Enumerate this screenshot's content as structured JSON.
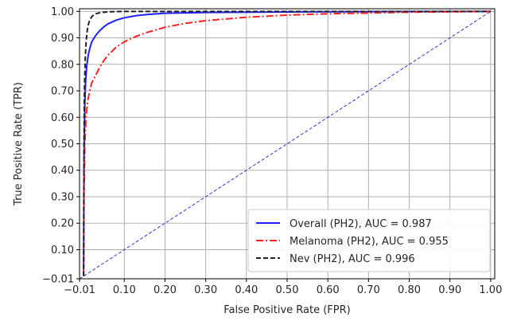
{
  "chart_data": {
    "type": "line",
    "xlabel": "False Positive Rate (FPR)",
    "ylabel": "True Positive Rate (TPR)",
    "xlim": [
      -0.01,
      1.01
    ],
    "ylim": [
      -0.01,
      1.01
    ],
    "x_ticks": [
      -0.01,
      0.1,
      0.2,
      0.3,
      0.4,
      0.5,
      0.6,
      0.7,
      0.8,
      0.9,
      1.0
    ],
    "x_tick_labels": [
      "−0.01",
      "0.10",
      "0.20",
      "0.30",
      "0.40",
      "0.50",
      "0.60",
      "0.70",
      "0.80",
      "0.90",
      "1.00"
    ],
    "y_ticks": [
      -0.01,
      0.1,
      0.2,
      0.3,
      0.4,
      0.5,
      0.6,
      0.7,
      0.8,
      0.9,
      1.0
    ],
    "y_tick_labels": [
      "−0.01",
      "0.10",
      "0.20",
      "0.30",
      "0.40",
      "0.50",
      "0.60",
      "0.70",
      "0.80",
      "0.90",
      "1.00"
    ],
    "grid": true,
    "legend_position": "bottom-right",
    "series": [
      {
        "name": "Overall (PH2), AUC = 0.987",
        "color": "#1f1fff",
        "style": "solid",
        "x": [
          0.0,
          0.001,
          0.003,
          0.005,
          0.008,
          0.012,
          0.016,
          0.02,
          0.03,
          0.04,
          0.05,
          0.06,
          0.08,
          0.1,
          0.13,
          0.16,
          0.2,
          0.3,
          0.5,
          0.7,
          1.0
        ],
        "y": [
          0.0,
          0.45,
          0.65,
          0.74,
          0.8,
          0.84,
          0.865,
          0.885,
          0.91,
          0.928,
          0.942,
          0.953,
          0.967,
          0.976,
          0.984,
          0.989,
          0.993,
          0.996,
          0.998,
          0.999,
          1.0
        ]
      },
      {
        "name": "Melanoma (PH2), AUC = 0.955",
        "color": "#ff2020",
        "style": "dashdot",
        "x": [
          0.0,
          0.001,
          0.003,
          0.006,
          0.01,
          0.015,
          0.02,
          0.03,
          0.04,
          0.05,
          0.06,
          0.08,
          0.1,
          0.12,
          0.15,
          0.2,
          0.25,
          0.3,
          0.4,
          0.5,
          0.6,
          0.8,
          1.0
        ],
        "y": [
          0.0,
          0.3,
          0.5,
          0.6,
          0.66,
          0.7,
          0.73,
          0.76,
          0.79,
          0.815,
          0.835,
          0.865,
          0.885,
          0.9,
          0.918,
          0.94,
          0.955,
          0.965,
          0.978,
          0.986,
          0.991,
          0.997,
          1.0
        ]
      },
      {
        "name": "Nev (PH2), AUC = 0.996",
        "color": "#222222",
        "style": "dashed",
        "x": [
          0.0,
          0.001,
          0.002,
          0.004,
          0.006,
          0.008,
          0.01,
          0.013,
          0.016,
          0.02,
          0.025,
          0.03,
          0.04,
          0.05,
          0.07,
          0.1,
          0.2,
          0.5,
          1.0
        ],
        "y": [
          0.0,
          0.5,
          0.7,
          0.82,
          0.88,
          0.915,
          0.94,
          0.958,
          0.97,
          0.98,
          0.987,
          0.991,
          0.995,
          0.997,
          0.999,
          1.0,
          1.0,
          1.0,
          1.0
        ]
      },
      {
        "name": "",
        "color": "#3333cc",
        "style": "dashed-thin",
        "x": [
          -0.01,
          1.0
        ],
        "y": [
          -0.01,
          1.0
        ]
      }
    ]
  }
}
